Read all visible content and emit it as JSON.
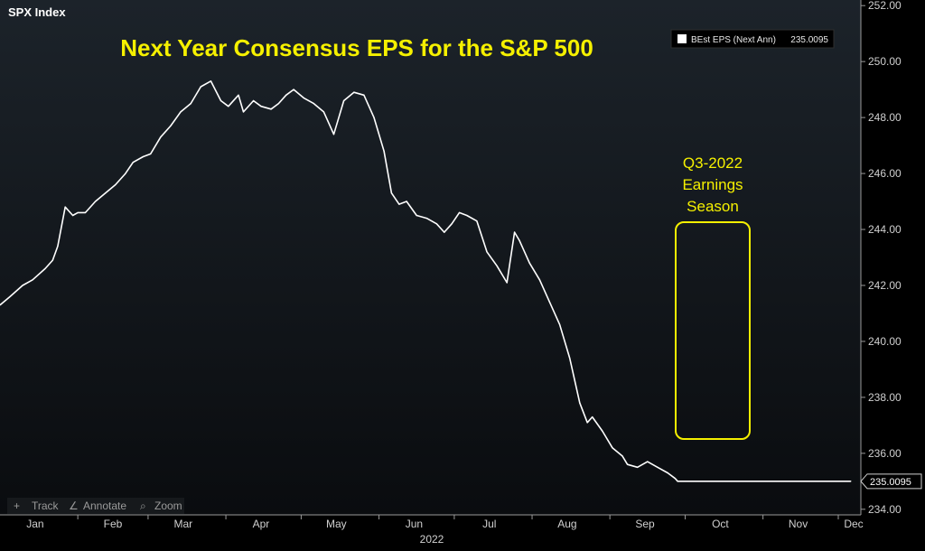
{
  "header": {
    "index_name": "SPX Index"
  },
  "colors": {
    "line": "#ffffff",
    "title": "#f5f000",
    "annotation": "#f5f000",
    "background_top": "#1c232a",
    "background_bottom": "#0a0c0f"
  },
  "toolbar": {
    "track_label": "Track",
    "annotate_label": "Annotate",
    "zoom_label": "Zoom"
  },
  "annotation": {
    "lines": [
      "Q3-2022",
      "Earnings",
      "Season"
    ]
  },
  "last_value_label": "235.0095",
  "chart_data": {
    "type": "line",
    "title": "Next Year Consensus EPS for the S&P 500",
    "legend": {
      "entry": "BEst EPS (Next Ann)",
      "value": "235.0095",
      "placement": "top-right"
    },
    "xlabel": "2022",
    "x_ticks": [
      "Jan",
      "Feb",
      "Mar",
      "Apr",
      "May",
      "Jun",
      "Jul",
      "Aug",
      "Sep",
      "Oct",
      "Nov",
      "Dec"
    ],
    "y_ticks": [
      "234.00",
      "236.00",
      "238.00",
      "240.00",
      "242.00",
      "244.00",
      "246.00",
      "248.00",
      "250.00",
      "252.00"
    ],
    "ylim": [
      233.8,
      252.2
    ],
    "xlim": [
      "2022-01-01",
      "2022-12-10"
    ],
    "grid": false,
    "series": [
      {
        "name": "BEst EPS (Next Ann)",
        "x": [
          "2022-01-01",
          "2022-01-05",
          "2022-01-10",
          "2022-01-14",
          "2022-01-19",
          "2022-01-22",
          "2022-01-24",
          "2022-01-27",
          "2022-01-30",
          "2022-02-01",
          "2022-02-04",
          "2022-02-08",
          "2022-02-12",
          "2022-02-16",
          "2022-02-20",
          "2022-02-23",
          "2022-02-27",
          "2022-03-02",
          "2022-03-06",
          "2022-03-10",
          "2022-03-14",
          "2022-03-18",
          "2022-03-22",
          "2022-03-26",
          "2022-03-30",
          "2022-04-02",
          "2022-04-06",
          "2022-04-08",
          "2022-04-12",
          "2022-04-15",
          "2022-04-19",
          "2022-04-22",
          "2022-04-25",
          "2022-04-28",
          "2022-05-02",
          "2022-05-06",
          "2022-05-10",
          "2022-05-14",
          "2022-05-18",
          "2022-05-22",
          "2022-05-26",
          "2022-05-30",
          "2022-06-03",
          "2022-06-06",
          "2022-06-09",
          "2022-06-12",
          "2022-06-16",
          "2022-06-20",
          "2022-06-24",
          "2022-06-26",
          "2022-06-27",
          "2022-06-30",
          "2022-07-03",
          "2022-07-06",
          "2022-07-10",
          "2022-07-14",
          "2022-07-18",
          "2022-07-22",
          "2022-07-25",
          "2022-07-27",
          "2022-07-31",
          "2022-08-04",
          "2022-08-08",
          "2022-08-12",
          "2022-08-16",
          "2022-08-20",
          "2022-08-23",
          "2022-08-25",
          "2022-08-29",
          "2022-09-02",
          "2022-09-06",
          "2022-09-08",
          "2022-09-12",
          "2022-09-16",
          "2022-09-20",
          "2022-09-24",
          "2022-09-27",
          "2022-09-28",
          "2022-10-01",
          "2022-10-05",
          "2022-10-09",
          "2022-10-13",
          "2022-10-16",
          "2022-10-19",
          "2022-10-22",
          "2022-10-25",
          "2022-10-28",
          "2022-11-01",
          "2022-11-05",
          "2022-11-09",
          "2022-11-13",
          "2022-11-17",
          "2022-11-21",
          "2022-11-25",
          "2022-11-29",
          "2022-12-03",
          "2022-12-06"
        ],
        "values": [
          241.3,
          241.6,
          242.0,
          242.2,
          242.6,
          242.9,
          243.4,
          244.8,
          244.5,
          244.6,
          244.6,
          245.0,
          245.3,
          245.6,
          246.0,
          246.4,
          246.6,
          246.7,
          247.3,
          247.7,
          248.2,
          248.5,
          249.1,
          249.3,
          248.6,
          248.4,
          248.8,
          248.2,
          248.6,
          248.4,
          248.3,
          248.5,
          248.8,
          249.0,
          248.7,
          248.5,
          248.2,
          247.4,
          248.6,
          248.9,
          248.8,
          248.0,
          246.8,
          245.3,
          244.9,
          245.0,
          244.5,
          244.4,
          244.2,
          244.0,
          243.9,
          244.2,
          244.6,
          244.5,
          244.3,
          243.2,
          242.7,
          242.1,
          243.9,
          243.6,
          242.8,
          242.2,
          241.4,
          240.6,
          239.4,
          237.8,
          237.1,
          237.3,
          236.8,
          236.2,
          235.9,
          235.6,
          235.5,
          235.7,
          235.5,
          235.3,
          235.1,
          235.0,
          235.0,
          235.0,
          235.0,
          235.0,
          235.0,
          235.0,
          235.0,
          235.0,
          235.0,
          235.0,
          235.0,
          235.0,
          235.0,
          235.0,
          235.0,
          235.0,
          235.0,
          235.0,
          235.0
        ]
      }
    ]
  }
}
